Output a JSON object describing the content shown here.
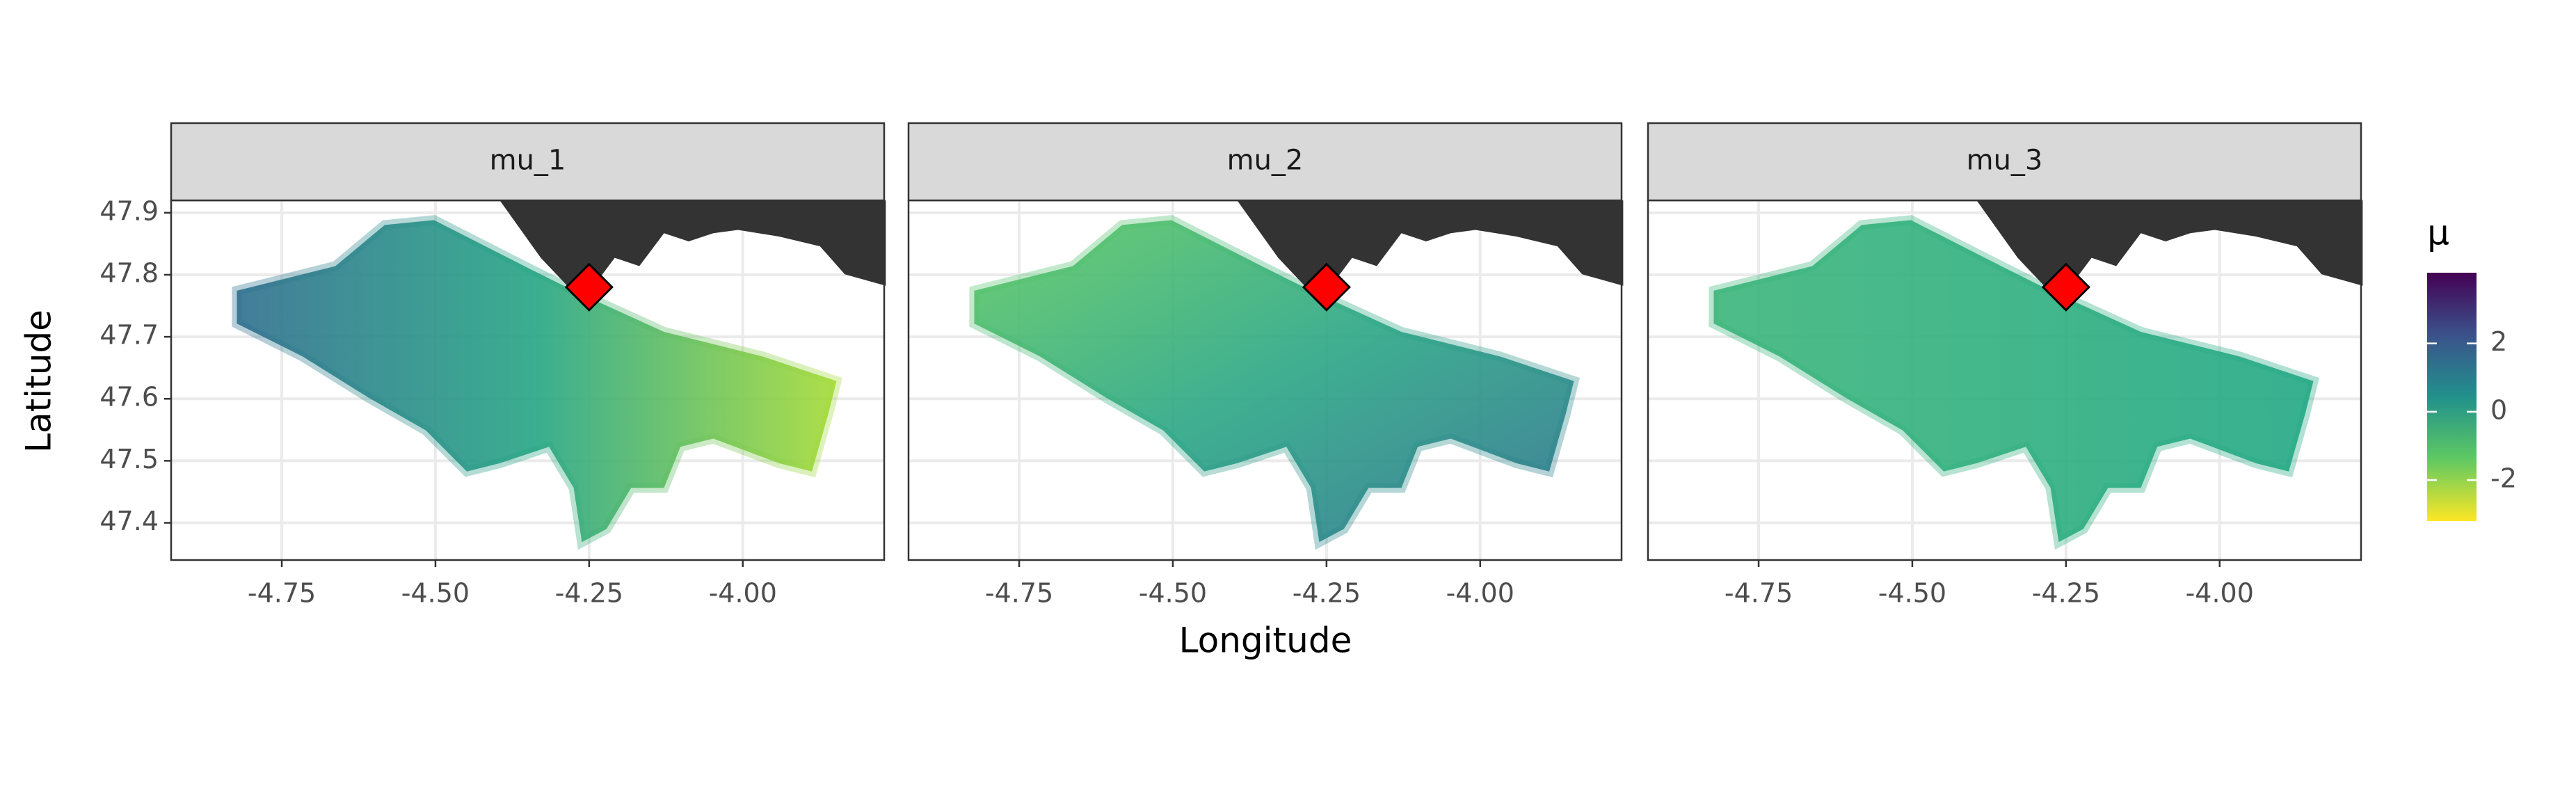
{
  "chart_data": {
    "type": "map",
    "panels": [
      "mu_1",
      "mu_2",
      "mu_3"
    ],
    "x_label": "Longitude",
    "y_label": "Latitude",
    "xlim": [
      -4.93,
      -3.77
    ],
    "ylim": [
      47.34,
      47.92
    ],
    "xticks": [
      {
        "value": -4.75,
        "label": "-4.75"
      },
      {
        "value": -4.5,
        "label": "-4.50"
      },
      {
        "value": -4.25,
        "label": "-4.25"
      },
      {
        "value": -4,
        "label": "-4.00"
      }
    ],
    "yticks": [
      47.4,
      47.5,
      47.6,
      47.7,
      47.8,
      47.9
    ],
    "grid": true,
    "marker": {
      "x": -4.25,
      "y": 47.78,
      "color": "#ff0000"
    },
    "legend": {
      "title": "μ",
      "clim": [
        -3.2,
        4.07
      ],
      "ticks": [
        -2,
        0,
        2
      ]
    }
  }
}
